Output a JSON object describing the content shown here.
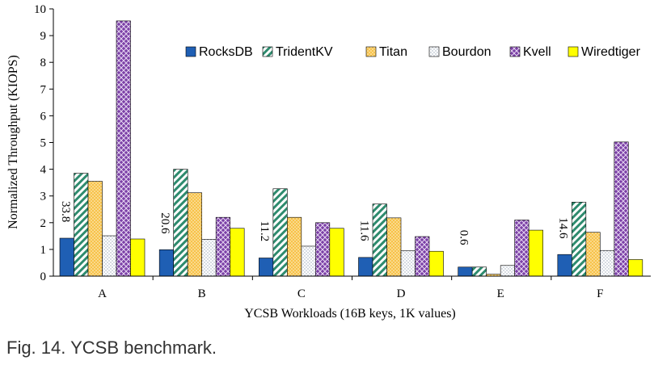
{
  "caption": "Fig. 14. YCSB benchmark.",
  "chart_data": {
    "type": "bar",
    "categories": [
      "A",
      "B",
      "C",
      "D",
      "E",
      "F"
    ],
    "series": [
      {
        "name": "RocksDB",
        "values": [
          1.42,
          0.99,
          0.68,
          0.7,
          0.34,
          0.81
        ],
        "color": "#1f5fb4",
        "pattern": "solid"
      },
      {
        "name": "TridentKV",
        "values": [
          3.85,
          4.0,
          3.27,
          2.7,
          0.34,
          2.77
        ],
        "color": "#2e8b6e",
        "pattern": "diagonal-stripes"
      },
      {
        "name": "Titan",
        "values": [
          3.55,
          3.12,
          2.2,
          2.18,
          0.07,
          1.64
        ],
        "color": "#f2b035",
        "pattern": "dots"
      },
      {
        "name": "Bourdon",
        "values": [
          1.51,
          1.38,
          1.12,
          0.95,
          0.4,
          0.96
        ],
        "color": "#9aa7b8",
        "pattern": "light-dots"
      },
      {
        "name": "Kvell",
        "values": [
          9.55,
          2.2,
          2.0,
          1.48,
          2.1,
          5.02
        ],
        "color": "#7b3fa6",
        "pattern": "crosshatch"
      },
      {
        "name": "Wiredtiger",
        "values": [
          1.39,
          1.79,
          1.79,
          0.93,
          1.72,
          0.62
        ],
        "color": "#ffff00",
        "pattern": "solid"
      }
    ],
    "data_labels": [
      "33.8",
      "20.6",
      "11.2",
      "11.6",
      "0.6",
      "14.6"
    ],
    "xlabel": "YCSB Workloads (16B keys, 1K values)",
    "ylabel": "Normalized Throughput (KIOPS)",
    "ylim": [
      0,
      10
    ],
    "yticks": [
      "0",
      "1",
      "2",
      "3",
      "4",
      "5",
      "6",
      "7",
      "8",
      "9",
      "10"
    ],
    "grid": false,
    "legend_position": "top-right"
  }
}
